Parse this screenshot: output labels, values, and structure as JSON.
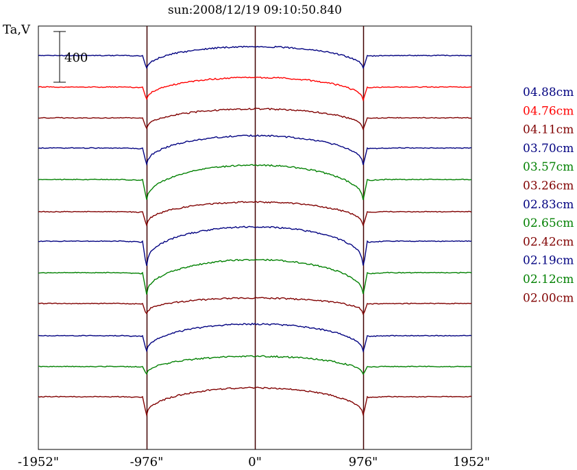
{
  "chart_data": {
    "type": "line",
    "title": "sun:2008/12/19 09:10:50.840",
    "ylabel": "Ta,V",
    "xlabel": "",
    "scale_bar_label": "400",
    "scale_bar_value": 400,
    "xlim": [
      -1952,
      1952
    ],
    "x_ticks": [
      -1952,
      -976,
      0,
      976,
      1952
    ],
    "x_tick_labels": [
      "-1952\"",
      "-976\"",
      "0\"",
      "976\"",
      "1952\""
    ],
    "vertical_lines": [
      -976,
      0,
      976
    ],
    "legend_placement": "right",
    "grid": false,
    "series": [
      {
        "name": "04.88cm",
        "color": "#000080",
        "baseline": 81,
        "disk_start": 99,
        "disk_peak": 68,
        "limb_dip": 101
      },
      {
        "name": "04.76cm",
        "color": "#ff0000",
        "baseline": 127,
        "disk_start": 144,
        "disk_peak": 113,
        "limb_dip": 146
      },
      {
        "name": "04.11cm",
        "color": "#800000",
        "baseline": 172,
        "disk_start": 186,
        "disk_peak": 159,
        "limb_dip": 189
      },
      {
        "name": "03.70cm",
        "color": "#000080",
        "baseline": 216,
        "disk_start": 238,
        "disk_peak": 198,
        "limb_dip": 241
      },
      {
        "name": "03.57cm",
        "color": "#008000",
        "baseline": 262,
        "disk_start": 290,
        "disk_peak": 241,
        "limb_dip": 292
      },
      {
        "name": "03.26cm",
        "color": "#800000",
        "baseline": 309,
        "disk_start": 326,
        "disk_peak": 295,
        "limb_dip": 330
      },
      {
        "name": "02.83cm",
        "color": "#000080",
        "baseline": 352,
        "disk_start": 380,
        "disk_peak": 331,
        "limb_dip": 392
      },
      {
        "name": "02.65cm",
        "color": "#008000",
        "baseline": 398,
        "disk_start": 427,
        "disk_peak": 379,
        "limb_dip": 430
      },
      {
        "name": "02.42cm",
        "color": "#800000",
        "baseline": 443,
        "disk_start": 455,
        "disk_peak": 435,
        "limb_dip": 461
      },
      {
        "name": "02.19cm",
        "color": "#000080",
        "baseline": 490,
        "disk_start": 511,
        "disk_peak": 473,
        "limb_dip": 514
      },
      {
        "name": "02.12cm",
        "color": "#008000",
        "baseline": 535,
        "disk_start": 545,
        "disk_peak": 520,
        "limb_dip": 547
      },
      {
        "name": "02.00cm",
        "color": "#800000",
        "baseline": 579,
        "disk_start": 604,
        "disk_peak": 566,
        "limb_dip": 607
      }
    ]
  }
}
